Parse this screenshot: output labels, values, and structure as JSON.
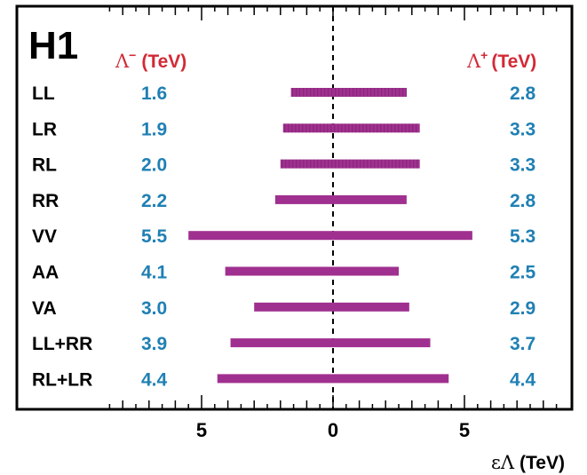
{
  "chart_data": {
    "type": "bar",
    "experiment_label": "H1",
    "left_header": {
      "symbol": "Λ",
      "sup": "−",
      "unit": "(TeV)"
    },
    "right_header": {
      "symbol": "Λ",
      "sup": "+",
      "unit": "(TeV)"
    },
    "xlabel": {
      "symbol": "εΛ",
      "unit": "(TeV)"
    },
    "xlim": [
      -8.5,
      8.8
    ],
    "xticks": [
      -5,
      0,
      5
    ],
    "xtick_labels": [
      "5",
      "0",
      "5"
    ],
    "reference_line_x": 0,
    "models": [
      {
        "name": "LL",
        "lambda_minus": "1.6",
        "lambda_plus": "2.8",
        "range": [
          -1.6,
          2.8
        ],
        "hatched": true
      },
      {
        "name": "LR",
        "lambda_minus": "1.9",
        "lambda_plus": "3.3",
        "range": [
          -1.9,
          3.3
        ],
        "hatched": true
      },
      {
        "name": "RL",
        "lambda_minus": "2.0",
        "lambda_plus": "3.3",
        "range": [
          -2.0,
          3.3
        ],
        "hatched": true
      },
      {
        "name": "RR",
        "lambda_minus": "2.2",
        "lambda_plus": "2.8",
        "range": [
          -2.2,
          2.8
        ],
        "hatched": false
      },
      {
        "name": "VV",
        "lambda_minus": "5.5",
        "lambda_plus": "5.3",
        "range": [
          -5.5,
          5.3
        ],
        "hatched": false
      },
      {
        "name": "AA",
        "lambda_minus": "4.1",
        "lambda_plus": "2.5",
        "range": [
          -4.1,
          2.5
        ],
        "hatched": false
      },
      {
        "name": "VA",
        "lambda_minus": "3.0",
        "lambda_plus": "2.9",
        "range": [
          -3.0,
          2.9
        ],
        "hatched": false
      },
      {
        "name": "LL+RR",
        "lambda_minus": "3.9",
        "lambda_plus": "3.7",
        "range": [
          -3.9,
          3.7
        ],
        "hatched": false
      },
      {
        "name": "RL+LR",
        "lambda_minus": "4.4",
        "lambda_plus": "4.4",
        "range": [
          -4.4,
          4.4
        ],
        "hatched": false
      }
    ],
    "colors": {
      "bar": "#a0308f",
      "values": "#1f80b4",
      "header": "#d22a35",
      "text": "#000000"
    }
  }
}
